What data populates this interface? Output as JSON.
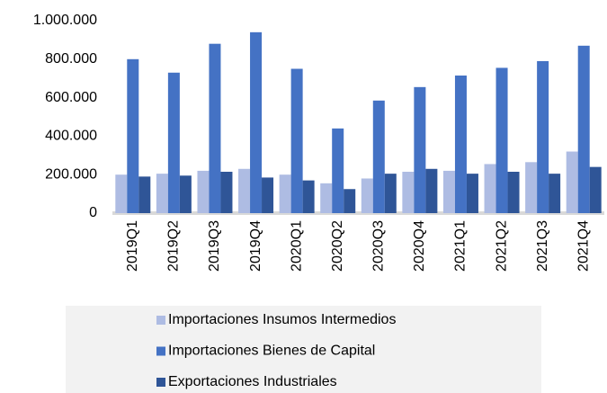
{
  "chart_data": {
    "type": "bar",
    "categories": [
      "2019Q1",
      "2019Q2",
      "2019Q3",
      "2019Q4",
      "2020Q1",
      "2020Q2",
      "2020Q3",
      "2020Q4",
      "2021Q1",
      "2021Q2",
      "2021Q3",
      "2021Q4"
    ],
    "series": [
      {
        "name": "Importaciones Insumos Intermedios",
        "color": "#aebce3",
        "values": [
          200000,
          205000,
          220000,
          230000,
          200000,
          155000,
          180000,
          215000,
          220000,
          255000,
          265000,
          320000
        ]
      },
      {
        "name": "Importaciones Bienes de Capital",
        "color": "#4472c4",
        "values": [
          800000,
          730000,
          880000,
          940000,
          750000,
          440000,
          585000,
          655000,
          715000,
          755000,
          790000,
          870000
        ]
      },
      {
        "name": "Exportaciones Industriales",
        "color": "#2f5597",
        "values": [
          190000,
          195000,
          215000,
          185000,
          170000,
          125000,
          205000,
          230000,
          205000,
          215000,
          205000,
          240000
        ]
      }
    ],
    "ylim": [
      0,
      1000000
    ],
    "yticks": [
      0,
      {
        "value": 200000,
        "label": "200.000"
      },
      {
        "value": 400000,
        "label": "400.000"
      },
      {
        "value": 600000,
        "label": "600.000"
      },
      {
        "value": 800000,
        "label": "800.000"
      },
      {
        "value": 1000000,
        "label": "1.000.000"
      }
    ]
  }
}
